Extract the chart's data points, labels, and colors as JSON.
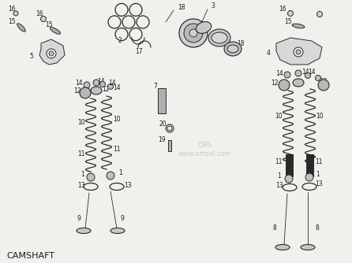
{
  "title_text": "CAMSHAFT",
  "background_color": "#f0f0ec",
  "line_color": "#2a2a2a",
  "text_color": "#1a1a1a",
  "title_fontsize": 8,
  "label_fontsize": 5.5,
  "fig_width": 4.46,
  "fig_height": 3.34,
  "dpi": 100,
  "watermark": "CMS\nwww.cmsnl.com",
  "watermark_color": "#c0c0c0"
}
